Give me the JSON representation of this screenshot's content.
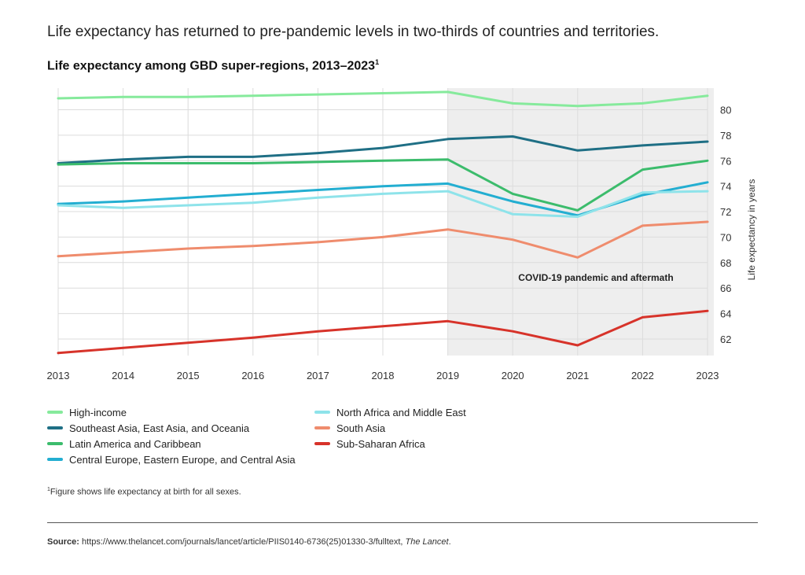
{
  "headline": "Life expectancy has returned to pre-pandemic levels in two-thirds of countries and territories.",
  "chart_title": "Life expectancy among GBD super-regions, 2013–2023",
  "chart_title_sup": "1",
  "footnote_sup": "1",
  "footnote": "Figure shows life expectancy at birth for all sexes.",
  "source_label": "Source:",
  "source_url": "https://www.thelancet.com/journals/lancet/article/PIIS0140-6736(25)01330-3/fulltext,",
  "source_pub": "The Lancet",
  "source_end": ".",
  "chart_data": {
    "type": "line",
    "title": "Life expectancy among GBD super-regions, 2013–2023",
    "xlabel": "",
    "ylabel": "Life expectancy in years",
    "x": [
      2013,
      2014,
      2015,
      2016,
      2017,
      2018,
      2019,
      2020,
      2021,
      2022,
      2023
    ],
    "ylim": [
      60.7,
      81.7
    ],
    "yticks": [
      62,
      64,
      66,
      68,
      70,
      72,
      74,
      76,
      78,
      80
    ],
    "grid": true,
    "shaded_region": {
      "from": 2019,
      "to": 2023,
      "label": "COVID-19 pandemic and aftermath",
      "color": "#eeeeee"
    },
    "series": [
      {
        "name": "High-income",
        "color": "#86ea9c",
        "values": [
          80.9,
          81.0,
          81.0,
          81.1,
          81.2,
          81.3,
          81.4,
          80.5,
          80.3,
          80.5,
          81.1
        ]
      },
      {
        "name": "Southeast Asia, East Asia, and Oceania",
        "color": "#1f6f85",
        "values": [
          75.8,
          76.1,
          76.3,
          76.3,
          76.6,
          77.0,
          77.7,
          77.9,
          76.8,
          77.2,
          77.5
        ]
      },
      {
        "name": "Latin America and Caribbean",
        "color": "#3cbc6c",
        "values": [
          75.7,
          75.8,
          75.8,
          75.8,
          75.9,
          76.0,
          76.1,
          73.4,
          72.1,
          75.3,
          76.0
        ]
      },
      {
        "name": "Central Europe, Eastern Europe, and Central Asia",
        "color": "#23aed1",
        "values": [
          72.6,
          72.8,
          73.1,
          73.4,
          73.7,
          74.0,
          74.2,
          72.8,
          71.7,
          73.3,
          74.3
        ]
      },
      {
        "name": "North Africa and Middle East",
        "color": "#8ee3ea",
        "values": [
          72.5,
          72.3,
          72.5,
          72.7,
          73.1,
          73.4,
          73.6,
          71.8,
          71.6,
          73.5,
          73.6
        ]
      },
      {
        "name": "South Asia",
        "color": "#ef8c6d",
        "values": [
          68.5,
          68.8,
          69.1,
          69.3,
          69.6,
          70.0,
          70.6,
          69.8,
          68.4,
          70.9,
          71.2
        ]
      },
      {
        "name": "Sub-Saharan Africa",
        "color": "#d7332a",
        "values": [
          60.9,
          61.3,
          61.7,
          62.1,
          62.6,
          63.0,
          63.4,
          62.6,
          61.5,
          63.7,
          64.2
        ]
      }
    ]
  }
}
